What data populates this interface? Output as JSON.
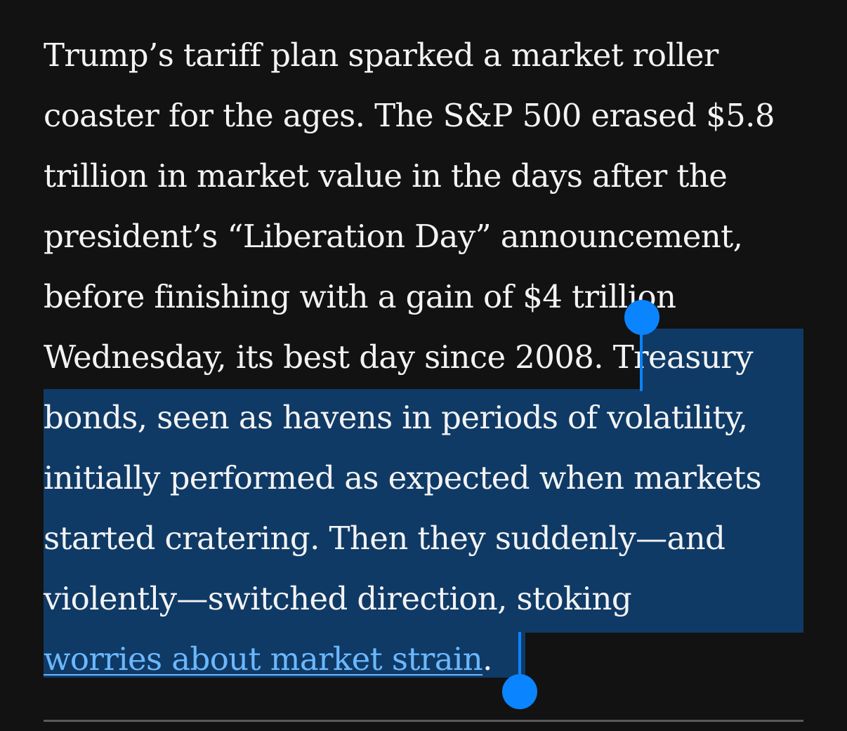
{
  "article": {
    "lines": [
      "Trump’s tariff plan sparked a market roller",
      "coaster for the ages. The S&P 500 erased $5.8",
      "trillion in market value in the days after the",
      "president’s “Liberation Day” announcement,",
      "before finishing with a gain of $4 trillion",
      "Wednesday, its best day since 2008. ",
      "bonds, seen as havens in periods of volatility,",
      "initially performed as expected when markets",
      "started cratering. Then they suddenly—and",
      "violently—switched direction, stoking"
    ],
    "selected_start": "Treasury",
    "link_text": "worries about market strain",
    "end_punct": "."
  },
  "colors": {
    "background": "#121212",
    "text": "#f3f3f3",
    "selection": "#0f3a66",
    "link": "#6bb8ff",
    "handle": "#0a84ff"
  }
}
